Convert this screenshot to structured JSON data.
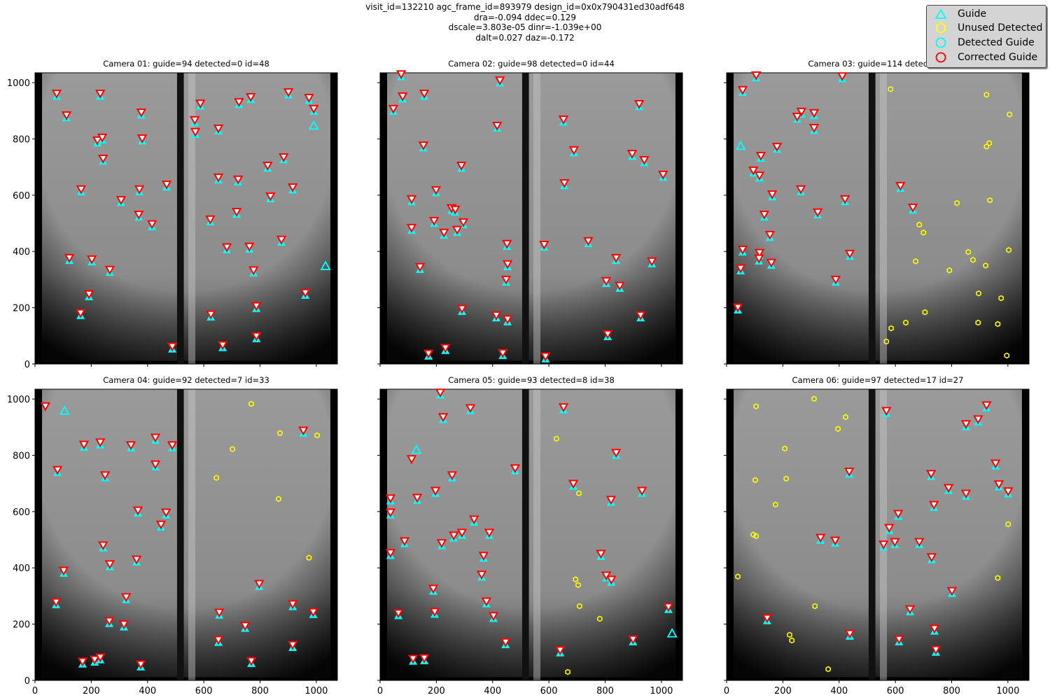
{
  "header": {
    "lines": [
      "visit_id=132210 agc_frame_id=893979 design_id=0x0x790431ed30adf648",
      "dra=-0.094 ddec=0.129",
      "dscale=3.803e-05 dinr=-1.039e+00",
      "dalt=0.027 daz=-0.172"
    ]
  },
  "legend": {
    "items": [
      {
        "label": "Guide",
        "color": "#00ffff",
        "marker": "triangle"
      },
      {
        "label": "Unused Detected",
        "color": "#ffff00",
        "marker": "hexagon"
      },
      {
        "label": "Detected Guide",
        "color": "#00ffff",
        "marker": "circle"
      },
      {
        "label": "Corrected Guide",
        "color": "#ff0000",
        "marker": "circle"
      }
    ]
  },
  "chart_data": [
    {
      "type": "scatter",
      "title": "Camera 01: guide=94 detected=0 id=48",
      "xlim": [
        0,
        1075
      ],
      "ylim": [
        0,
        1035
      ],
      "xticks": [
        0,
        200,
        400,
        600,
        800,
        1000
      ],
      "yticks": [
        0,
        200,
        400,
        600,
        800,
        1000
      ],
      "show_xtick_labels": false,
      "show_ytick_labels": true,
      "guide_corrected": [
        [
          77,
          959
        ],
        [
          232,
          959
        ],
        [
          112,
          882
        ],
        [
          222,
          793
        ],
        [
          239,
          803
        ],
        [
          242,
          728
        ],
        [
          378,
          892
        ],
        [
          381,
          800
        ],
        [
          164,
          619
        ],
        [
          306,
          581
        ],
        [
          371,
          619
        ],
        [
          468,
          636
        ],
        [
          369,
          529
        ],
        [
          416,
          495
        ],
        [
          122,
          375
        ],
        [
          202,
          370
        ],
        [
          266,
          333
        ],
        [
          192,
          246
        ],
        [
          162,
          179
        ],
        [
          488,
          60
        ],
        [
          568,
          865
        ],
        [
          588,
          924
        ],
        [
          570,
          823
        ],
        [
          652,
          835
        ],
        [
          767,
          947
        ],
        [
          725,
          929
        ],
        [
          901,
          964
        ],
        [
          974,
          944
        ],
        [
          991,
          905
        ],
        [
          827,
          703
        ],
        [
          884,
          733
        ],
        [
          652,
          661
        ],
        [
          722,
          654
        ],
        [
          837,
          594
        ],
        [
          916,
          626
        ],
        [
          623,
          512
        ],
        [
          717,
          539
        ],
        [
          682,
          413
        ],
        [
          762,
          415
        ],
        [
          876,
          440
        ],
        [
          777,
          331
        ],
        [
          787,
          204
        ],
        [
          625,
          174
        ],
        [
          787,
          97
        ],
        [
          667,
          65
        ],
        [
          961,
          251
        ]
      ],
      "guide_only": [
        [
          991,
          847
        ],
        [
          1033,
          348
        ]
      ],
      "corrected_only": [],
      "unused_detected": []
    },
    {
      "type": "scatter",
      "title": "Camera 02: guide=98 detected=0 id=44",
      "xlim": [
        0,
        1075
      ],
      "ylim": [
        0,
        1035
      ],
      "xticks": [
        0,
        200,
        400,
        600,
        800,
        1000
      ],
      "yticks": [
        0,
        200,
        400,
        600,
        800,
        1000
      ],
      "show_xtick_labels": false,
      "show_ytick_labels": false,
      "guide_corrected": [
        [
          75,
          1028
        ],
        [
          80,
          949
        ],
        [
          47,
          905
        ],
        [
          157,
          959
        ],
        [
          426,
          1006
        ],
        [
          416,
          845
        ],
        [
          154,
          775
        ],
        [
          652,
          867
        ],
        [
          921,
          922
        ],
        [
          689,
          758
        ],
        [
          896,
          745
        ],
        [
          939,
          723
        ],
        [
          1006,
          671
        ],
        [
          199,
          616
        ],
        [
          289,
          703
        ],
        [
          112,
          584
        ],
        [
          655,
          641
        ],
        [
          254,
          552
        ],
        [
          267,
          547
        ],
        [
          192,
          507
        ],
        [
          296,
          502
        ],
        [
          112,
          482
        ],
        [
          227,
          465
        ],
        [
          274,
          475
        ],
        [
          451,
          425
        ],
        [
          453,
          353
        ],
        [
          142,
          343
        ],
        [
          583,
          422
        ],
        [
          740,
          435
        ],
        [
          839,
          375
        ],
        [
          966,
          363
        ],
        [
          448,
          298
        ],
        [
          804,
          293
        ],
        [
          852,
          276
        ],
        [
          291,
          194
        ],
        [
          413,
          171
        ],
        [
          453,
          157
        ],
        [
          926,
          171
        ],
        [
          809,
          104
        ],
        [
          172,
          35
        ],
        [
          232,
          55
        ],
        [
          436,
          37
        ],
        [
          588,
          25
        ]
      ],
      "guide_only": [],
      "corrected_only": [],
      "unused_detected": []
    },
    {
      "type": "scatter",
      "title": "Camera 03: guide=114 detected=",
      "xlim": [
        0,
        1075
      ],
      "ylim": [
        0,
        1035
      ],
      "xticks": [
        0,
        200,
        400,
        600,
        800,
        1000
      ],
      "yticks": [
        0,
        200,
        400,
        600,
        800,
        1000
      ],
      "show_xtick_labels": false,
      "show_ytick_labels": false,
      "guide_corrected": [
        [
          105,
          1024
        ],
        [
          57,
          972
        ],
        [
          411,
          1021
        ],
        [
          266,
          895
        ],
        [
          251,
          877
        ],
        [
          311,
          890
        ],
        [
          311,
          837
        ],
        [
          179,
          770
        ],
        [
          122,
          738
        ],
        [
          95,
          686
        ],
        [
          117,
          668
        ],
        [
          264,
          619
        ],
        [
          421,
          584
        ],
        [
          162,
          601
        ],
        [
          618,
          631
        ],
        [
          662,
          554
        ],
        [
          134,
          529
        ],
        [
          324,
          537
        ],
        [
          154,
          457
        ],
        [
          57,
          405
        ],
        [
          117,
          393
        ],
        [
          115,
          373
        ],
        [
          159,
          358
        ],
        [
          50,
          338
        ],
        [
          438,
          390
        ],
        [
          388,
          298
        ],
        [
          40,
          199
        ]
      ],
      "guide_only": [
        [
          50,
          775
        ]
      ],
      "corrected_only": [],
      "unused_detected": [
        [
          583,
          977
        ],
        [
          924,
          957
        ],
        [
          1006,
          887
        ],
        [
          934,
          785
        ],
        [
          924,
          773
        ],
        [
          819,
          572
        ],
        [
          936,
          582
        ],
        [
          685,
          495
        ],
        [
          700,
          467
        ],
        [
          859,
          398
        ],
        [
          876,
          370
        ],
        [
          672,
          365
        ],
        [
          921,
          350
        ],
        [
          1003,
          405
        ],
        [
          792,
          333
        ],
        [
          896,
          251
        ],
        [
          976,
          234
        ],
        [
          705,
          184
        ],
        [
          585,
          127
        ],
        [
          568,
          80
        ],
        [
          637,
          147
        ],
        [
          894,
          147
        ],
        [
          964,
          142
        ],
        [
          996,
          30
        ]
      ]
    },
    {
      "type": "scatter",
      "title": "Camera 04: guide=92 detected=7 id=33",
      "xlim": [
        0,
        1075
      ],
      "ylim": [
        0,
        1035
      ],
      "xticks": [
        0,
        200,
        400,
        600,
        800,
        1000
      ],
      "yticks": [
        0,
        200,
        400,
        600,
        800,
        1000
      ],
      "show_xtick_labels": true,
      "show_ytick_labels": true,
      "guide_corrected": [
        [
          80,
          746
        ],
        [
          174,
          836
        ],
        [
          232,
          844
        ],
        [
          249,
          727
        ],
        [
          341,
          834
        ],
        [
          428,
          861
        ],
        [
          488,
          834
        ],
        [
          428,
          766
        ],
        [
          366,
          602
        ],
        [
          466,
          595
        ],
        [
          448,
          552
        ],
        [
          242,
          478
        ],
        [
          266,
          411
        ],
        [
          361,
          428
        ],
        [
          102,
          388
        ],
        [
          75,
          276
        ],
        [
          324,
          294
        ],
        [
          264,
          209
        ],
        [
          316,
          197
        ],
        [
          169,
          65
        ],
        [
          212,
          72
        ],
        [
          232,
          80
        ],
        [
          376,
          55
        ],
        [
          954,
          886
        ],
        [
          652,
          142
        ],
        [
          655,
          239
        ],
        [
          747,
          192
        ],
        [
          797,
          341
        ],
        [
          916,
          269
        ],
        [
          989,
          241
        ],
        [
          916,
          124
        ],
        [
          769,
          67
        ]
      ],
      "guide_only": [
        [
          105,
          958
        ]
      ],
      "corrected_only": [
        [
          37,
          975
        ]
      ],
      "unused_detected": [
        [
          769,
          983
        ],
        [
          871,
          879
        ],
        [
          1003,
          871
        ],
        [
          702,
          822
        ],
        [
          645,
          720
        ],
        [
          866,
          645
        ],
        [
          974,
          436
        ]
      ]
    },
    {
      "type": "scatter",
      "title": "Camera 05: guide=93 detected=8 id=38",
      "xlim": [
        0,
        1075
      ],
      "ylim": [
        0,
        1035
      ],
      "xticks": [
        0,
        200,
        400,
        600,
        800,
        1000
      ],
      "yticks": [
        0,
        200,
        400,
        600,
        800,
        1000
      ],
      "show_xtick_labels": true,
      "show_ytick_labels": false,
      "guide_corrected": [
        [
          214,
          1021
        ],
        [
          224,
          934
        ],
        [
          321,
          966
        ],
        [
          37,
          645
        ],
        [
          37,
          595
        ],
        [
          132,
          647
        ],
        [
          197,
          672
        ],
        [
          256,
          727
        ],
        [
          480,
          752
        ],
        [
          262,
          513
        ],
        [
          219,
          486
        ],
        [
          87,
          493
        ],
        [
          37,
          451
        ],
        [
          334,
          570
        ],
        [
          291,
          523
        ],
        [
          388,
          523
        ],
        [
          368,
          441
        ],
        [
          361,
          374
        ],
        [
          189,
          324
        ],
        [
          378,
          279
        ],
        [
          403,
          227
        ],
        [
          194,
          242
        ],
        [
          65,
          237
        ],
        [
          446,
          134
        ],
        [
          117,
          75
        ],
        [
          157,
          77
        ],
        [
          652,
          969
        ],
        [
          839,
          807
        ],
        [
          687,
          697
        ],
        [
          821,
          640
        ],
        [
          931,
          672
        ],
        [
          785,
          448
        ],
        [
          804,
          371
        ],
        [
          822,
          356
        ],
        [
          1025,
          259
        ],
        [
          899,
          144
        ],
        [
          640,
          105
        ]
      ],
      "guide_only": [
        [
          129,
          819
        ],
        [
          1038,
          167
        ]
      ],
      "corrected_only": [
        [
          112,
          787
        ]
      ],
      "unused_detected": [
        [
          627,
          859
        ],
        [
          707,
          665
        ],
        [
          695,
          359
        ],
        [
          704,
          339
        ],
        [
          709,
          264
        ],
        [
          781,
          219
        ],
        [
          667,
          30
        ]
      ]
    },
    {
      "type": "scatter",
      "title": "Camera 06: guide=97 detected=17 id=27",
      "xlim": [
        0,
        1075
      ],
      "ylim": [
        0,
        1035
      ],
      "xticks": [
        0,
        200,
        400,
        600,
        800,
        1000
      ],
      "yticks": [
        0,
        200,
        400,
        600,
        800,
        1000
      ],
      "show_xtick_labels": true,
      "show_ytick_labels": false,
      "guide_corrected": [
        [
          568,
          956
        ],
        [
          924,
          976
        ],
        [
          851,
          909
        ],
        [
          894,
          926
        ],
        [
          956,
          769
        ],
        [
          968,
          695
        ],
        [
          1001,
          670
        ],
        [
          436,
          740
        ],
        [
          727,
          732
        ],
        [
          789,
          682
        ],
        [
          851,
          662
        ],
        [
          737,
          622
        ],
        [
          610,
          590
        ],
        [
          578,
          540
        ],
        [
          558,
          481
        ],
        [
          598,
          490
        ],
        [
          334,
          505
        ],
        [
          386,
          495
        ],
        [
          685,
          490
        ],
        [
          729,
          436
        ],
        [
          801,
          316
        ],
        [
          652,
          251
        ],
        [
          144,
          219
        ],
        [
          613,
          144
        ],
        [
          438,
          164
        ],
        [
          739,
          182
        ],
        [
          744,
          107
        ]
      ],
      "guide_only": [],
      "corrected_only": [],
      "unused_detected": [
        [
          105,
          974
        ],
        [
          311,
          1001
        ],
        [
          423,
          936
        ],
        [
          396,
          894
        ],
        [
          207,
          824
        ],
        [
          102,
          712
        ],
        [
          212,
          717
        ],
        [
          174,
          625
        ],
        [
          95,
          518
        ],
        [
          105,
          513
        ],
        [
          40,
          369
        ],
        [
          314,
          264
        ],
        [
          224,
          162
        ],
        [
          232,
          142
        ],
        [
          361,
          40
        ],
        [
          1001,
          555
        ],
        [
          964,
          364
        ]
      ]
    }
  ]
}
